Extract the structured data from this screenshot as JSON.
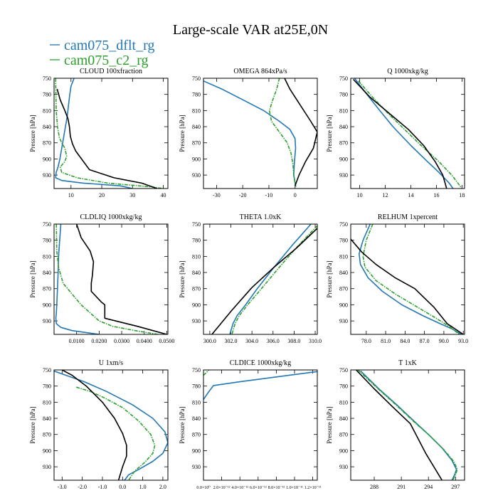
{
  "figure": {
    "title": "Large-scale VAR at25E,0N",
    "legend": [
      {
        "name": "cam075_dflt_rg",
        "color": "#2277b4"
      },
      {
        "name": "cam075_c2_rg",
        "color": "#2ca02c"
      }
    ],
    "ylabel": "Pressure [hPa]"
  },
  "chart_data": [
    {
      "type": "line",
      "title": "CLOUD  100xfraction",
      "xlim": [
        4.5,
        41.5
      ],
      "xticks": [
        10,
        20,
        30,
        40
      ],
      "xtick_labels": [
        "10",
        "20",
        "30",
        "40"
      ],
      "ylim": [
        750,
        955
      ],
      "yticks": [
        750,
        780,
        810,
        840,
        870,
        900,
        930
      ],
      "series": [
        {
          "name": "cam075_dflt_rg",
          "color": "#2277b4",
          "dashed": false,
          "x": [
            11,
            10,
            9.6,
            9.2,
            8.8,
            8.2,
            7.6,
            7,
            6.4,
            5.8,
            5.2,
            5,
            7,
            14,
            26,
            30
          ],
          "y": [
            750,
            765,
            780,
            800,
            820,
            840,
            860,
            880,
            900,
            915,
            925,
            935,
            940,
            945,
            950,
            955
          ]
        },
        {
          "name": "cam075_c2_rg",
          "color": "#2ca02c",
          "dashed": true,
          "x": [
            5,
            5.1,
            5.2,
            5.6,
            6.2,
            7,
            8,
            8.6,
            8,
            6.5,
            7,
            12,
            22,
            36,
            40
          ],
          "y": [
            750,
            780,
            810,
            840,
            860,
            870,
            880,
            895,
            905,
            915,
            925,
            935,
            945,
            952,
            955
          ]
        },
        {
          "name": "black",
          "color": "#000000",
          "dashed": false,
          "x": [
            5.5,
            6.5,
            8,
            9,
            9.5,
            9.8,
            10.5,
            11.5,
            16,
            24,
            33,
            38
          ],
          "y": [
            770,
            790,
            810,
            825,
            840,
            858,
            872,
            885,
            920,
            935,
            945,
            955
          ]
        }
      ]
    },
    {
      "type": "line",
      "title": "OMEGA  864xPa/s",
      "xlim": [
        -35,
        8.5
      ],
      "xticks": [
        -30,
        -20,
        -10,
        0
      ],
      "xtick_labels": [
        "-30",
        "-20",
        "-10",
        "0"
      ],
      "ylim": [
        750,
        955
      ],
      "yticks": [
        750,
        780,
        810,
        840,
        870,
        900,
        930
      ],
      "series": [
        {
          "name": "cam075_dflt_rg",
          "color": "#2277b4",
          "dashed": false,
          "x": [
            -35,
            -28,
            -20,
            -12,
            -6,
            -2,
            0,
            0.2,
            -0.3,
            -0.5,
            -0.1,
            0.2
          ],
          "y": [
            755,
            770,
            790,
            810,
            830,
            845,
            862,
            880,
            910,
            930,
            942,
            950
          ]
        },
        {
          "name": "cam075_c2_rg",
          "color": "#2ca02c",
          "dashed": true,
          "x": [
            -6,
            -7,
            -8.5,
            -9.8,
            -9,
            -6,
            -3,
            -1.5,
            -0.8,
            -0.5,
            0,
            0.3
          ],
          "y": [
            750,
            770,
            790,
            810,
            830,
            850,
            870,
            890,
            910,
            930,
            945,
            952
          ]
        },
        {
          "name": "black",
          "color": "#000000",
          "dashed": false,
          "x": [
            -4,
            -2,
            2,
            6,
            8.5,
            7,
            4,
            1.5,
            0
          ],
          "y": [
            750,
            770,
            800,
            830,
            850,
            880,
            905,
            930,
            950
          ]
        }
      ]
    },
    {
      "type": "line",
      "title": "Q  1000xkg/kg",
      "xlim": [
        9.3,
        18.2
      ],
      "xticks": [
        10,
        12,
        14,
        16,
        18
      ],
      "xtick_labels": [
        "10",
        "12",
        "14",
        "16",
        "18"
      ],
      "ylim": [
        750,
        955
      ],
      "yticks": [
        750,
        780,
        810,
        840,
        870,
        900,
        930
      ],
      "series": [
        {
          "name": "cam075_dflt_rg",
          "color": "#2277b4",
          "dashed": false,
          "x": [
            9.6,
            10.4,
            11.4,
            12.6,
            14,
            15.3,
            16.2,
            17,
            17.3
          ],
          "y": [
            750,
            775,
            805,
            840,
            875,
            905,
            925,
            945,
            955
          ]
        },
        {
          "name": "cam075_c2_rg",
          "color": "#2ca02c",
          "dashed": true,
          "x": [
            9.9,
            11,
            12.2,
            13.5,
            14.8,
            16.2,
            17.2,
            18
          ],
          "y": [
            755,
            785,
            815,
            845,
            875,
            905,
            930,
            955
          ]
        },
        {
          "name": "black",
          "color": "#000000",
          "dashed": false,
          "x": [
            9.5,
            10.8,
            12.3,
            13.8,
            15,
            15.9,
            16.5,
            16.8
          ],
          "y": [
            752,
            785,
            815,
            845,
            875,
            905,
            930,
            955
          ]
        }
      ]
    },
    {
      "type": "line",
      "title": "CLDLIQ  1000xkg/kg",
      "xlim": [
        0,
        0.0505
      ],
      "xticks": [
        0.01,
        0.02,
        0.03,
        0.04,
        0.05
      ],
      "xtick_labels": [
        "0.0100",
        "0.0200",
        "0.0300",
        "0.0400",
        "0.0500"
      ],
      "ylim": [
        750,
        955
      ],
      "yticks": [
        750,
        780,
        810,
        840,
        870,
        900,
        930
      ],
      "series": [
        {
          "name": "cam075_dflt_rg",
          "color": "#2277b4",
          "dashed": false,
          "x": [
            0.003,
            0.0025,
            0.002,
            0.0018,
            0.0015,
            0.0012,
            0.001,
            0.0008,
            0.001,
            0.003,
            0.008,
            0.02
          ],
          "y": [
            750,
            780,
            810,
            840,
            870,
            900,
            915,
            925,
            935,
            942,
            948,
            955
          ]
        },
        {
          "name": "cam075_c2_rg",
          "color": "#2ca02c",
          "dashed": true,
          "x": [
            0.001,
            0.0012,
            0.002,
            0.004,
            0.008,
            0.012,
            0.016,
            0.02,
            0.026,
            0.036,
            0.046
          ],
          "y": [
            750,
            800,
            830,
            860,
            880,
            900,
            915,
            930,
            940,
            948,
            955
          ]
        },
        {
          "name": "black",
          "color": "#000000",
          "dashed": false,
          "x": [
            0.01,
            0.012,
            0.016,
            0.0175,
            0.017,
            0.0165,
            0.0165,
            0.021,
            0.0225,
            0.0225,
            0.037,
            0.05
          ],
          "y": [
            750,
            775,
            800,
            820,
            845,
            860,
            875,
            895,
            900,
            925,
            940,
            955
          ]
        }
      ]
    },
    {
      "type": "line",
      "title": "THETA  1.0xK",
      "xlim": [
        299.4,
        310.2
      ],
      "xticks": [
        300,
        302,
        304,
        306,
        308,
        310
      ],
      "xtick_labels": [
        "300.0",
        "302.0",
        "304.0",
        "306.0",
        "308.0",
        "310.0"
      ],
      "ylim": [
        750,
        955
      ],
      "yticks": [
        750,
        780,
        810,
        840,
        870,
        900,
        930
      ],
      "series": [
        {
          "name": "cam075_dflt_rg",
          "color": "#2277b4",
          "dashed": false,
          "x": [
            309.6,
            307.8,
            306.1,
            304.5,
            303.4,
            302.6,
            302.2,
            301.9
          ],
          "y": [
            750,
            790,
            830,
            870,
            900,
            920,
            935,
            955
          ]
        },
        {
          "name": "cam075_c2_rg",
          "color": "#2ca02c",
          "dashed": true,
          "x": [
            310.2,
            308.4,
            306.6,
            304.9,
            303.6,
            302.8,
            302.4,
            302.1
          ],
          "y": [
            753,
            790,
            830,
            870,
            900,
            920,
            935,
            955
          ]
        },
        {
          "name": "black",
          "color": "#000000",
          "dashed": false,
          "x": [
            310.2,
            308.2,
            306.1,
            304,
            302.1,
            300.2
          ],
          "y": [
            758,
            795,
            830,
            868,
            910,
            955
          ]
        }
      ]
    },
    {
      "type": "line",
      "title": "RELHUM  1xpercent",
      "xlim": [
        75.6,
        93.2
      ],
      "xticks": [
        78,
        81,
        84,
        87,
        90,
        93
      ],
      "xtick_labels": [
        "78.0",
        "81.0",
        "84.0",
        "87.0",
        "90.0",
        "93.0"
      ],
      "ylim": [
        750,
        955
      ],
      "yticks": [
        750,
        780,
        810,
        840,
        870,
        900,
        930
      ],
      "series": [
        {
          "name": "cam075_dflt_rg",
          "color": "#2277b4",
          "dashed": false,
          "x": [
            78.6,
            77.5,
            76.9,
            77.1,
            78.3,
            80.5,
            83.5,
            86.7,
            89.4,
            91.3,
            92.7
          ],
          "y": [
            750,
            780,
            805,
            825,
            850,
            875,
            900,
            920,
            935,
            945,
            955
          ]
        },
        {
          "name": "cam075_c2_rg",
          "color": "#2ca02c",
          "dashed": true,
          "x": [
            79,
            78,
            77.5,
            77.8,
            79.5,
            82.5,
            86,
            88.8,
            90.8,
            92.4
          ],
          "y": [
            750,
            780,
            810,
            830,
            855,
            880,
            905,
            925,
            940,
            955
          ]
        },
        {
          "name": "black",
          "color": "#000000",
          "dashed": false,
          "x": [
            75.6,
            77.3,
            79.5,
            82.5,
            85.5,
            88.5,
            90.5,
            93
          ],
          "y": [
            778,
            802,
            825,
            850,
            870,
            905,
            935,
            955
          ]
        }
      ]
    },
    {
      "type": "line",
      "title": "U  1xm/s",
      "xlim": [
        -3.4,
        2.25
      ],
      "xticks": [
        -3,
        -2,
        -1,
        0,
        1,
        2
      ],
      "xtick_labels": [
        "-3.0",
        "-2.0",
        "-1.0",
        "0.0",
        "1.0",
        "2.0"
      ],
      "ylim": [
        750,
        955
      ],
      "yticks": [
        750,
        780,
        810,
        840,
        870,
        900,
        930
      ],
      "series": [
        {
          "name": "cam075_dflt_rg",
          "color": "#2277b4",
          "dashed": false,
          "x": [
            -3.4,
            -2.8,
            -1.9,
            -0.8,
            0.5,
            1.5,
            2.1,
            2.25,
            2.0,
            1.5,
            0.8,
            0.3,
            0.1
          ],
          "y": [
            752,
            760,
            772,
            790,
            815,
            840,
            865,
            885,
            905,
            920,
            935,
            945,
            955
          ]
        },
        {
          "name": "cam075_c2_rg",
          "color": "#2ca02c",
          "dashed": true,
          "x": [
            -2.3,
            -1.6,
            -0.9,
            0,
            0.8,
            1.4,
            1.6,
            1.5,
            1.1,
            0.6,
            0.3
          ],
          "y": [
            782,
            790,
            802,
            820,
            845,
            870,
            890,
            905,
            922,
            938,
            955
          ]
        },
        {
          "name": "black",
          "color": "#000000",
          "dashed": false,
          "x": [
            -3.0,
            -2.5,
            -1.8,
            -1.0,
            -0.4,
            0,
            0.2,
            0.2,
            0,
            -0.2
          ],
          "y": [
            750,
            760,
            780,
            810,
            840,
            868,
            890,
            910,
            930,
            955
          ]
        }
      ]
    },
    {
      "type": "line",
      "title": "CLDICE  1000xkg/kg",
      "xlim": [
        0,
        1.25e-11
      ],
      "xticks": [
        0,
        2e-12,
        4e-12,
        6e-12,
        8e-12,
        1e-11,
        1.2e-11
      ],
      "xtick_labels": [
        "0.0×10⁰",
        "2.0×10⁻¹²",
        "4.0×10⁻¹²",
        "6.0×10⁻¹²",
        "8.0×10⁻¹²",
        "1.0×10⁻¹¹",
        "1.2×10⁻¹¹"
      ],
      "ylim": [
        750,
        955
      ],
      "yticks": [
        750,
        780,
        810,
        840,
        870,
        900,
        930
      ],
      "series": [
        {
          "name": "cam075_dflt_rg",
          "color": "#2277b4",
          "dashed": false,
          "x": [
            1.25e-11,
            8e-12,
            4e-12,
            1.1e-12,
            6e-13,
            0
          ],
          "y": [
            753,
            763,
            772,
            779,
            790,
            805
          ]
        },
        {
          "name": "cam075_c2_rg",
          "color": "#2ca02c",
          "dashed": true,
          "x": [
            0,
            3e-13,
            6e-13
          ],
          "y": [
            760,
            755,
            750
          ]
        }
      ]
    },
    {
      "type": "line",
      "title": "T  1xK",
      "xlim": [
        285.4,
        298
      ],
      "xticks": [
        288,
        291,
        294,
        297
      ],
      "xtick_labels": [
        "288",
        "291",
        "294",
        "297"
      ],
      "ylim": [
        750,
        955
      ],
      "yticks": [
        750,
        780,
        810,
        840,
        870,
        900,
        930
      ],
      "series": [
        {
          "name": "cam075_dflt_rg",
          "color": "#2277b4",
          "dashed": false,
          "x": [
            286.5,
            288.5,
            290.5,
            292.4,
            294,
            295.5,
            296.6,
            297.1,
            296.9,
            296.6
          ],
          "y": [
            752,
            785,
            815,
            845,
            870,
            895,
            918,
            935,
            945,
            955
          ]
        },
        {
          "name": "cam075_c2_rg",
          "color": "#2ca02c",
          "dashed": true,
          "x": [
            286.2,
            288.3,
            290.4,
            292.5,
            294.2,
            295.7,
            296.8,
            297.2,
            297,
            296.7
          ],
          "y": [
            750,
            783,
            815,
            848,
            873,
            898,
            920,
            935,
            945,
            955
          ]
        },
        {
          "name": "black",
          "color": "#000000",
          "dashed": false,
          "x": [
            286,
            288,
            290,
            292,
            293.7,
            295.5
          ],
          "y": [
            750,
            785,
            818,
            850,
            905,
            955
          ]
        }
      ]
    }
  ]
}
